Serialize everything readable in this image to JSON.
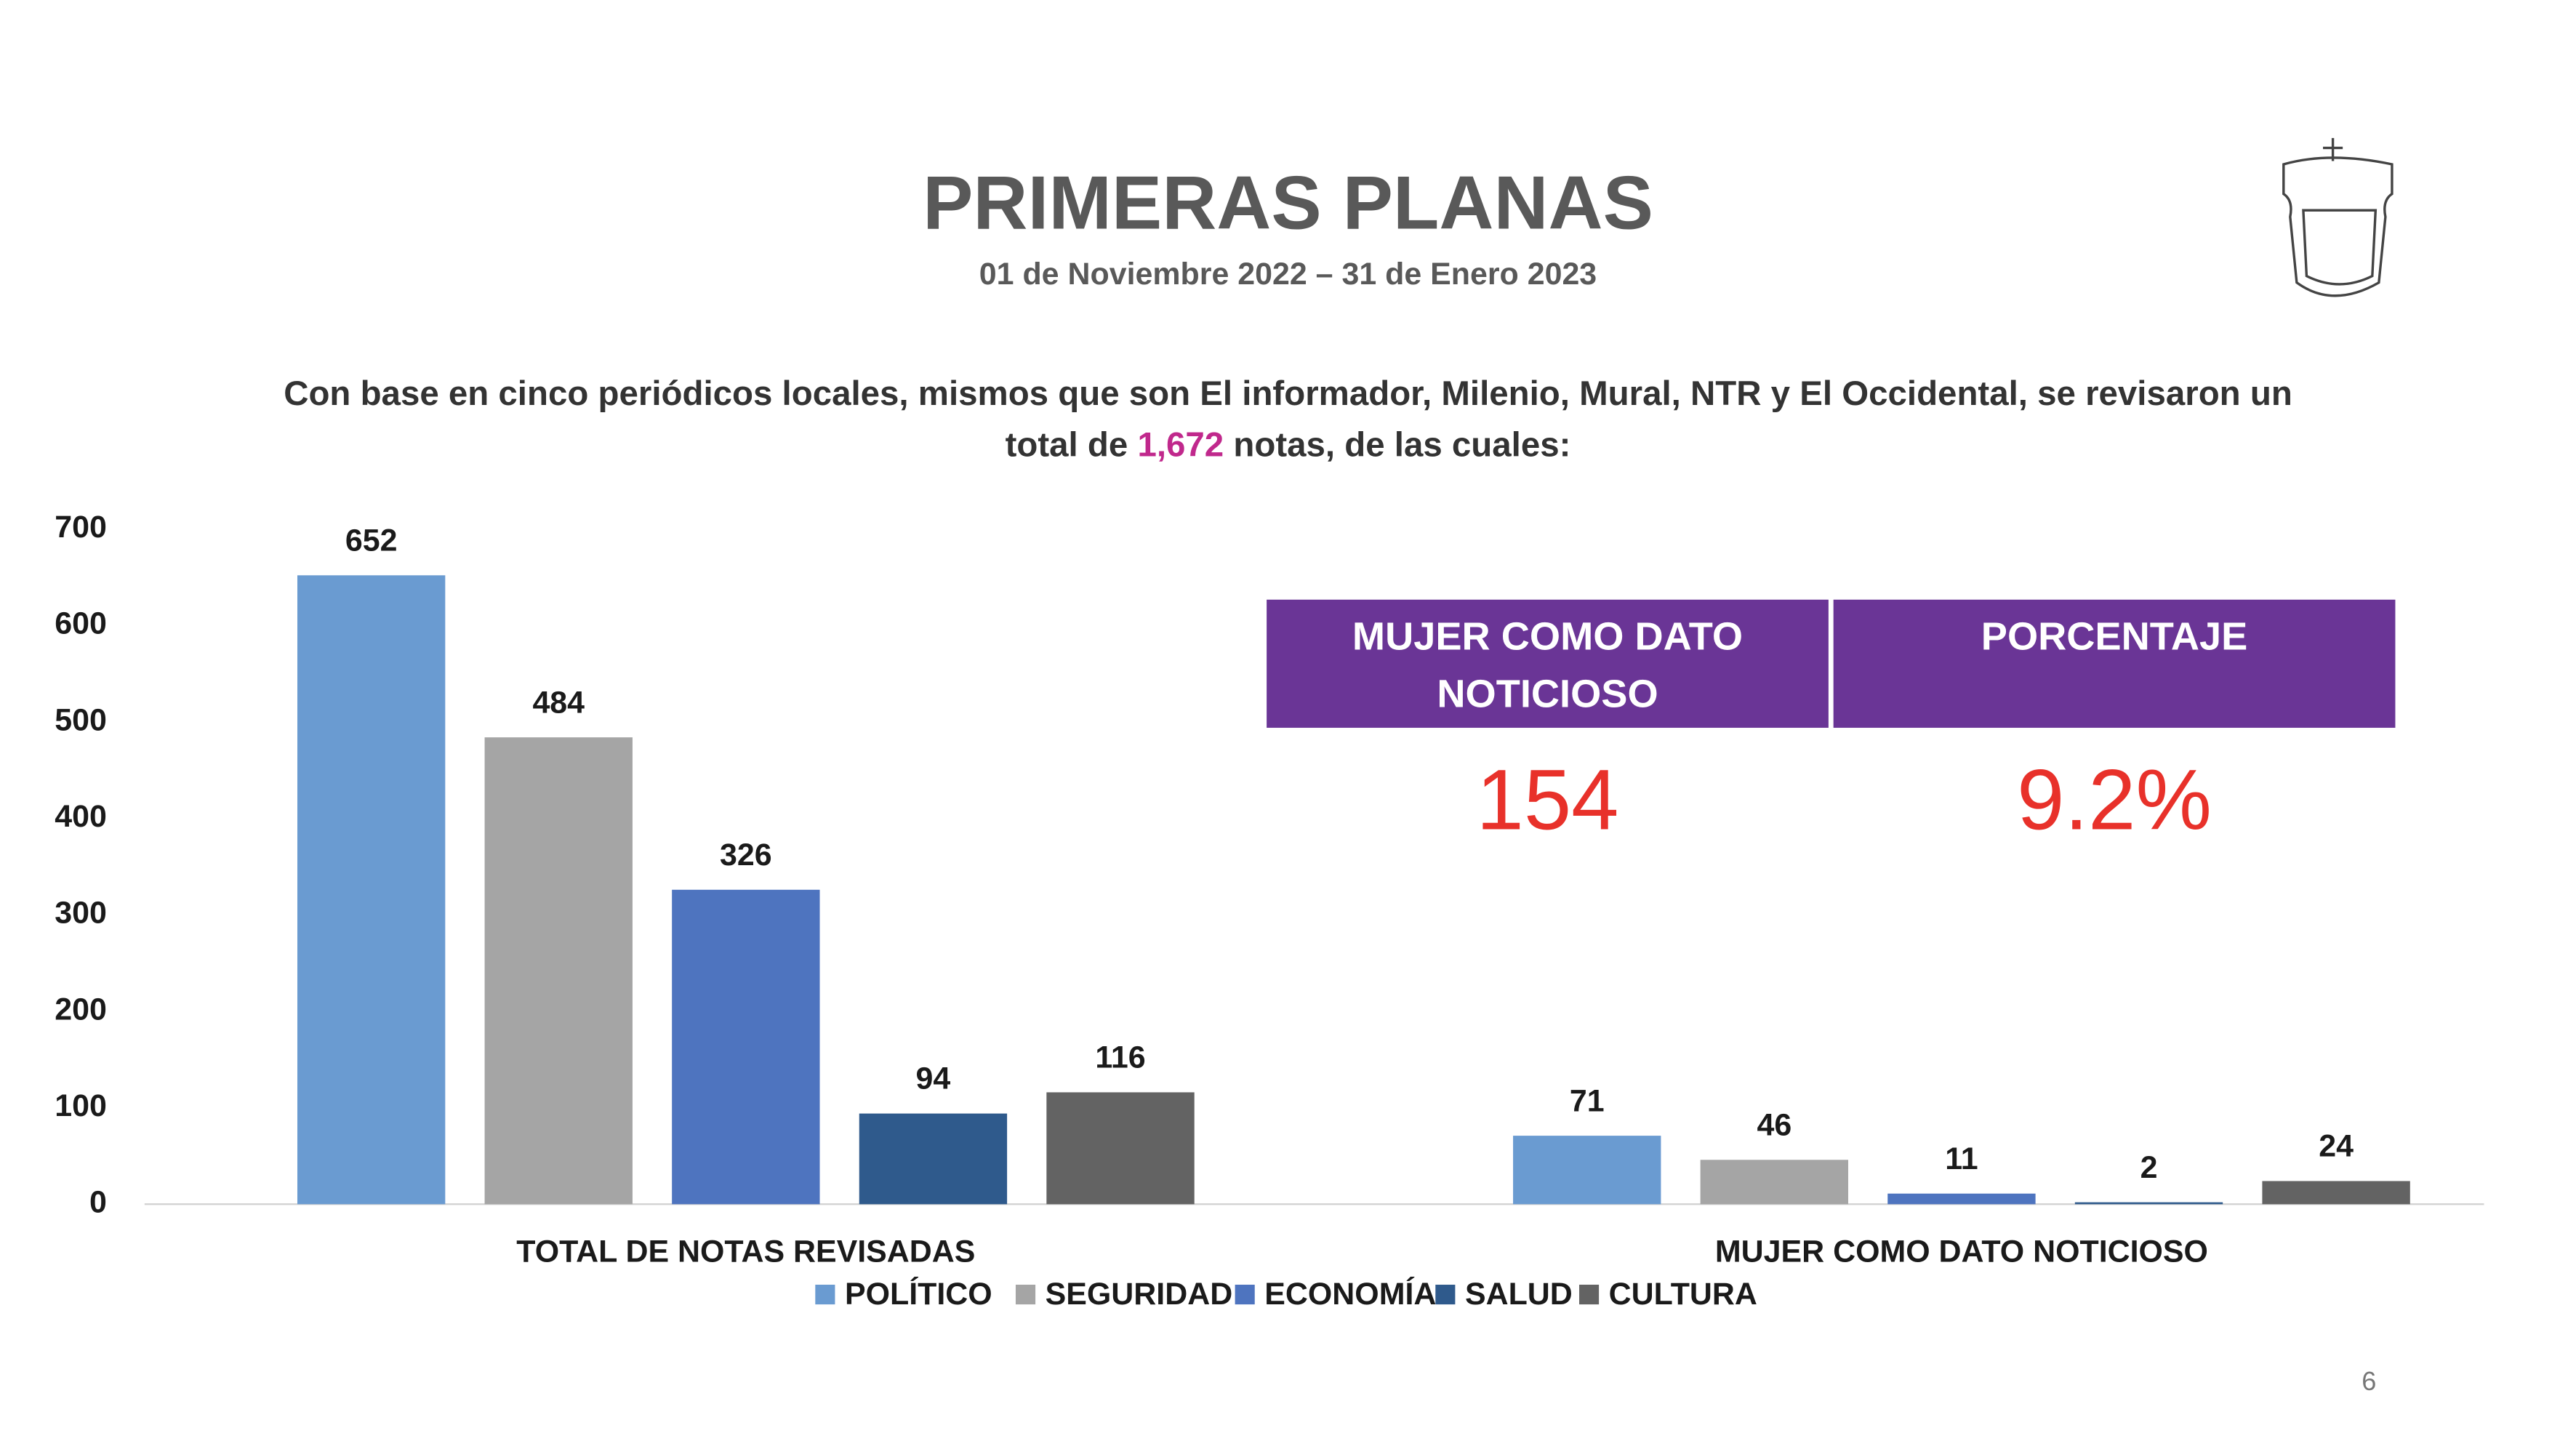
{
  "slide": {
    "title": "PRIMERAS PLANAS",
    "subtitle": "01 de Noviembre 2022 – 31 de Enero 2023",
    "intro": [
      "Con base en cinco periódicos locales, mismos que son El informador, Milenio, Mural, NTR y El Occidental, se revisaron un",
      "total de",
      "1,672",
      "notas, de las cuales:"
    ],
    "table": {
      "headers": [
        [
          "MUJER COMO DATO",
          "NOTICIOSO"
        ],
        [
          "PORCENTAJE"
        ]
      ],
      "values": [
        "154",
        "9.2%"
      ]
    },
    "page_number": "6"
  },
  "chart_data": {
    "type": "bar",
    "categories": [
      "TOTAL DE NOTAS REVISADAS",
      "MUJER COMO DATO NOTICIOSO"
    ],
    "series": [
      {
        "name": "POLÍTICO",
        "color": "#6a9bd1",
        "values": [
          652,
          71
        ]
      },
      {
        "name": "SEGURIDAD",
        "color": "#a5a5a5",
        "values": [
          484,
          46
        ]
      },
      {
        "name": "ECONOMÍA",
        "color": "#4e74bf",
        "values": [
          326,
          11
        ]
      },
      {
        "name": "SALUD",
        "color": "#2f5a8c",
        "values": [
          94,
          2
        ]
      },
      {
        "name": "CULTURA",
        "color": "#636363",
        "values": [
          116,
          24
        ]
      }
    ],
    "ylim": [
      0,
      700
    ],
    "yticks": [
      0,
      100,
      200,
      300,
      400,
      500,
      600,
      700
    ],
    "grid": false,
    "legend": "bottom",
    "data_labels": true
  }
}
